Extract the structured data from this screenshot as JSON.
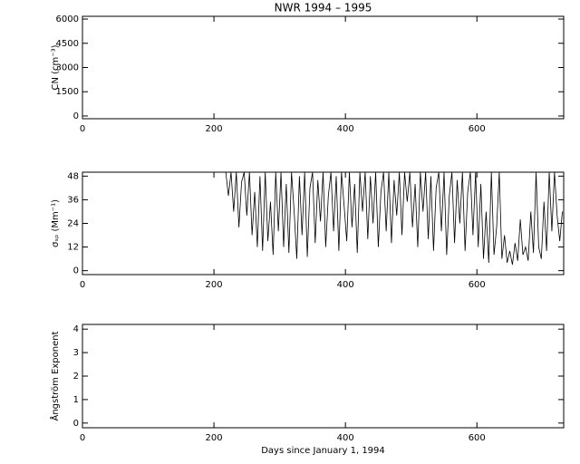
{
  "chart_data": [
    {
      "type": "line",
      "title": "NWR 1994 – 1995",
      "ylabel": "CN (cm⁻³)",
      "xlim": [
        0,
        732
      ],
      "xticks": [
        0,
        200,
        400,
        600
      ],
      "ylim": [
        -170,
        6170
      ],
      "yticks": [
        0,
        1500,
        3000,
        4500,
        6000
      ]
    },
    {
      "type": "line",
      "ylabel": "σₛₚ (Mm⁻¹)",
      "xlim": [
        0,
        732
      ],
      "xticks": [
        0,
        200,
        400,
        600
      ],
      "ylim": [
        -2,
        50
      ],
      "yticks": [
        0,
        12,
        24,
        36,
        48
      ],
      "color": "#000000",
      "x": [
        218,
        222,
        226,
        230,
        234,
        238,
        242,
        246,
        250,
        254,
        258,
        262,
        266,
        270,
        274,
        278,
        282,
        286,
        290,
        294,
        298,
        302,
        306,
        310,
        314,
        318,
        322,
        326,
        330,
        334,
        338,
        342,
        346,
        350,
        354,
        358,
        362,
        366,
        370,
        374,
        378,
        382,
        386,
        390,
        394,
        398,
        402,
        406,
        410,
        414,
        418,
        422,
        426,
        430,
        434,
        438,
        442,
        446,
        450,
        454,
        458,
        462,
        466,
        470,
        474,
        478,
        482,
        486,
        490,
        494,
        498,
        502,
        506,
        510,
        514,
        518,
        522,
        526,
        530,
        534,
        538,
        542,
        546,
        550,
        554,
        558,
        562,
        566,
        570,
        574,
        578,
        582,
        586,
        590,
        594,
        598,
        602,
        606,
        610,
        614,
        618,
        622,
        626,
        630,
        634,
        638,
        642,
        646,
        650,
        654,
        658,
        662,
        666,
        670,
        674,
        678,
        682,
        686,
        690,
        694,
        698,
        702,
        706,
        710,
        714,
        718,
        722,
        726,
        730
      ],
      "values": [
        50,
        38,
        50,
        30,
        50,
        22,
        45,
        50,
        28,
        50,
        18,
        40,
        12,
        48,
        10,
        50,
        15,
        35,
        8,
        50,
        20,
        50,
        12,
        44,
        9,
        50,
        30,
        6,
        48,
        18,
        50,
        7,
        42,
        50,
        14,
        46,
        25,
        50,
        12,
        38,
        50,
        20,
        48,
        10,
        50,
        33,
        15,
        50,
        22,
        44,
        9,
        50,
        30,
        50,
        16,
        48,
        24,
        50,
        12,
        40,
        50,
        20,
        50,
        14,
        46,
        28,
        50,
        18,
        50,
        35,
        50,
        22,
        44,
        12,
        50,
        30,
        50,
        16,
        48,
        10,
        42,
        50,
        20,
        50,
        8,
        38,
        50,
        14,
        46,
        24,
        50,
        10,
        40,
        50,
        18,
        50,
        12,
        44,
        6,
        30,
        4,
        50,
        8,
        22,
        50,
        6,
        18,
        4,
        10,
        3,
        14,
        5,
        26,
        8,
        12,
        5,
        30,
        9,
        50,
        12,
        6,
        35,
        10,
        50,
        20,
        50,
        28,
        15,
        30
      ]
    },
    {
      "type": "line",
      "ylabel": "Ångström Exponent",
      "xlabel": "Days since January 1, 1994",
      "xlim": [
        0,
        732
      ],
      "xticks": [
        0,
        200,
        400,
        600
      ],
      "ylim": [
        -0.2,
        4.2
      ],
      "yticks": [
        0,
        1,
        2,
        3,
        4
      ]
    }
  ]
}
